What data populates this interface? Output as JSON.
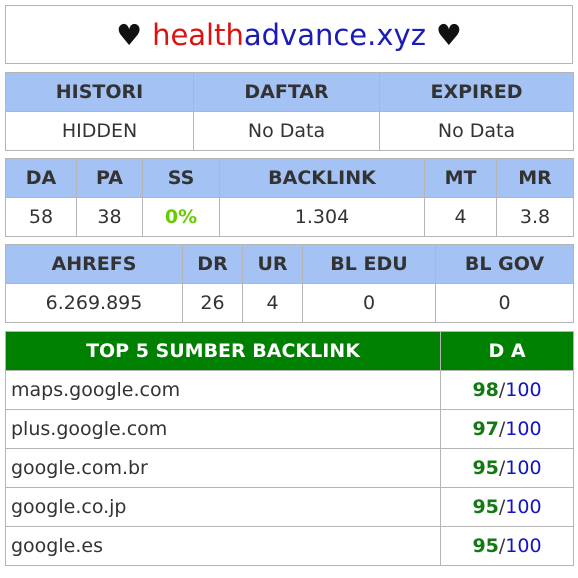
{
  "title": {
    "heart_left": "♥",
    "domain_part1": "health",
    "domain_part2": "advance.xyz",
    "heart_right": "♥"
  },
  "table1": {
    "headers": [
      "HISTORI",
      "DAFTAR",
      "EXPIRED"
    ],
    "values": [
      "HIDDEN",
      "No Data",
      "No Data"
    ]
  },
  "table2": {
    "headers": [
      "DA",
      "PA",
      "SS",
      "BACKLINK",
      "MT",
      "MR"
    ],
    "values": [
      "58",
      "38",
      "0%",
      "1.304",
      "4",
      "3.8"
    ]
  },
  "table3": {
    "headers": [
      "AHREFS",
      "DR",
      "UR",
      "BL EDU",
      "BL GOV"
    ],
    "values": [
      "6.269.895",
      "26",
      "4",
      "0",
      "0"
    ]
  },
  "table4": {
    "headers": [
      "TOP 5 SUMBER BACKLINK",
      "D A"
    ],
    "rows": [
      {
        "site": "maps.google.com",
        "score": "98",
        "sep": "/",
        "max": "100"
      },
      {
        "site": "plus.google.com",
        "score": "97",
        "sep": "/",
        "max": "100"
      },
      {
        "site": "google.com.br",
        "score": "95",
        "sep": "/",
        "max": "100"
      },
      {
        "site": "google.co.jp",
        "score": "95",
        "sep": "/",
        "max": "100"
      },
      {
        "site": "google.es",
        "score": "95",
        "sep": "/",
        "max": "100"
      }
    ]
  },
  "colors": {
    "header_blue": "#a4c2f4",
    "header_green": "#008000",
    "title_red": "#dd1111",
    "title_blue": "#1b1bb8",
    "ss_green": "#66cc00",
    "score_green": "#137a13",
    "max_blue": "#1212c8"
  }
}
